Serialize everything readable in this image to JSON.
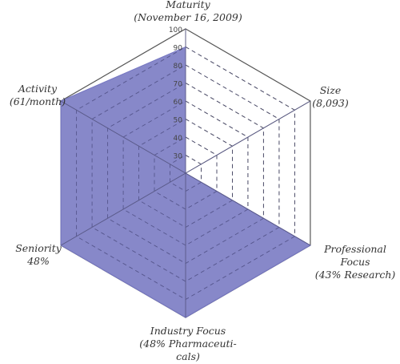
{
  "chart_data": {
    "type": "radar",
    "axes": [
      {
        "name": "maturity",
        "lines": [
          "Maturity",
          "(November 16, 2009)"
        ],
        "value": 90
      },
      {
        "name": "size",
        "lines": [
          "Size",
          "(8,093)"
        ],
        "value": 20
      },
      {
        "name": "professional",
        "lines": [
          "Professional",
          "Focus",
          "(43% Research)"
        ],
        "value": 100
      },
      {
        "name": "industry",
        "lines": [
          "Industry Focus",
          "(48% Pharmaceuti-",
          "cals)"
        ],
        "value": 100
      },
      {
        "name": "seniority",
        "lines": [
          "Seniority",
          "48%"
        ],
        "value": 100
      },
      {
        "name": "activity",
        "lines": [
          "Activity",
          "(61/month)"
        ],
        "value": 100
      }
    ],
    "rlim": [
      20,
      100
    ],
    "ticks": [
      30,
      40,
      50,
      60,
      70,
      80,
      90,
      100
    ],
    "colors": {
      "fill": "#7677c2",
      "grid": "#555555",
      "axis": "#777777",
      "tick_text": "#444444"
    }
  }
}
